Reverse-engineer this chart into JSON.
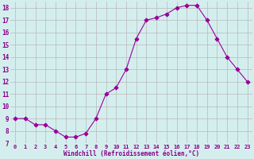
{
  "x": [
    0,
    1,
    2,
    3,
    4,
    5,
    6,
    7,
    8,
    9,
    10,
    11,
    12,
    13,
    14,
    15,
    16,
    17,
    18,
    19,
    20,
    21,
    22,
    23
  ],
  "y": [
    9,
    9,
    8.5,
    8.5,
    8,
    7.5,
    7.5,
    7.8,
    9,
    11,
    11.5,
    13,
    15.5,
    17,
    17.2,
    17.5,
    18,
    18.2,
    18.2,
    17,
    15.5,
    14,
    13,
    12
  ],
  "line_color": "#990099",
  "marker": "D",
  "bg_color": "#d4eeee",
  "grid_color": "#b8b8b8",
  "xlabel": "Windchill (Refroidissement éolien,°C)",
  "xlabel_color": "#880088",
  "tick_color": "#880088",
  "ylim": [
    7,
    18.5
  ],
  "xlim": [
    -0.5,
    23.5
  ],
  "yticks": [
    7,
    8,
    9,
    10,
    11,
    12,
    13,
    14,
    15,
    16,
    17,
    18
  ],
  "xticks": [
    0,
    1,
    2,
    3,
    4,
    5,
    6,
    7,
    8,
    9,
    10,
    11,
    12,
    13,
    14,
    15,
    16,
    17,
    18,
    19,
    20,
    21,
    22,
    23
  ]
}
